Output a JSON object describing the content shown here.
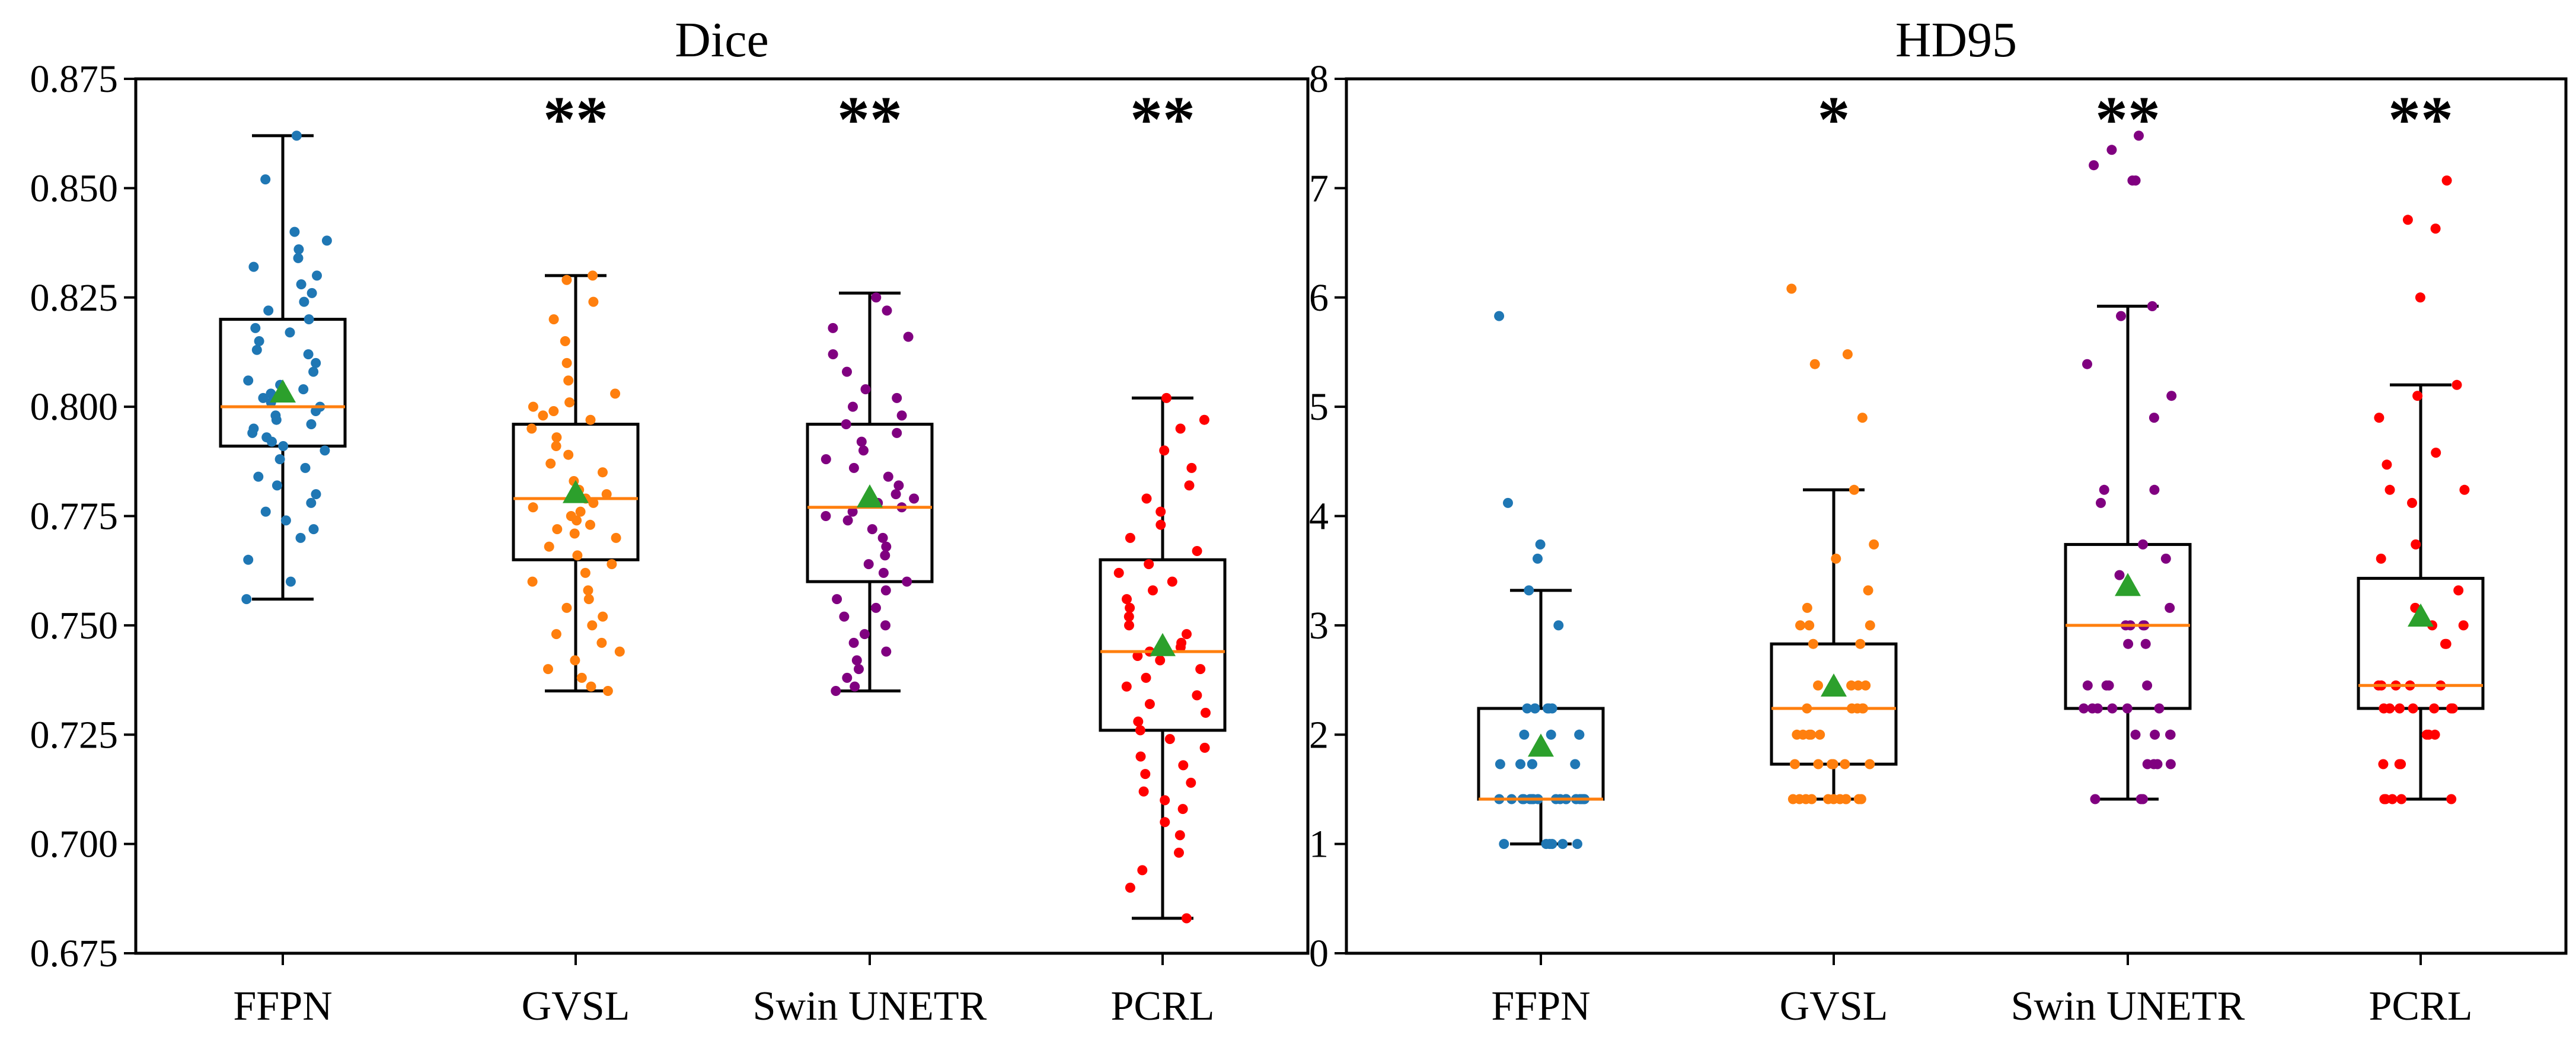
{
  "chart_data": [
    {
      "type": "box",
      "title": "Dice",
      "xlabel": "",
      "ylabel": "",
      "ylim": [
        0.675,
        0.875
      ],
      "yticks": [
        0.675,
        0.7,
        0.725,
        0.75,
        0.775,
        0.8,
        0.825,
        0.85,
        0.875
      ],
      "ytick_labels": [
        "0.675",
        "0.700",
        "0.725",
        "0.750",
        "0.775",
        "0.800",
        "0.825",
        "0.850",
        "0.875"
      ],
      "categories": [
        "FFPN",
        "GVSL",
        "Swin UNETR",
        "PCRL"
      ],
      "colors": [
        "#1f77b4",
        "#ff7f0e",
        "#800080",
        "#ff0000"
      ],
      "mean_color": "#2ca02c",
      "median_color": "#ff7f0e",
      "significance": [
        "",
        "**",
        "**",
        "**"
      ],
      "boxes": [
        {
          "whislo": 0.756,
          "q1": 0.791,
          "median": 0.8,
          "q3": 0.82,
          "whishi": 0.862,
          "mean": 0.803,
          "points": [
            0.862,
            0.852,
            0.84,
            0.838,
            0.836,
            0.834,
            0.832,
            0.83,
            0.828,
            0.826,
            0.824,
            0.822,
            0.82,
            0.818,
            0.817,
            0.815,
            0.813,
            0.812,
            0.81,
            0.808,
            0.806,
            0.805,
            0.804,
            0.803,
            0.802,
            0.801,
            0.8,
            0.799,
            0.798,
            0.797,
            0.796,
            0.795,
            0.794,
            0.793,
            0.792,
            0.791,
            0.79,
            0.788,
            0.786,
            0.784,
            0.782,
            0.78,
            0.778,
            0.776,
            0.774,
            0.772,
            0.77,
            0.765,
            0.76,
            0.756
          ]
        },
        {
          "whislo": 0.735,
          "q1": 0.765,
          "median": 0.779,
          "q3": 0.796,
          "whishi": 0.83,
          "mean": 0.78,
          "points": [
            0.83,
            0.829,
            0.824,
            0.82,
            0.815,
            0.81,
            0.806,
            0.803,
            0.801,
            0.8,
            0.799,
            0.798,
            0.797,
            0.795,
            0.793,
            0.791,
            0.789,
            0.787,
            0.785,
            0.783,
            0.781,
            0.78,
            0.779,
            0.778,
            0.777,
            0.776,
            0.775,
            0.774,
            0.773,
            0.772,
            0.771,
            0.77,
            0.768,
            0.766,
            0.764,
            0.762,
            0.76,
            0.758,
            0.756,
            0.754,
            0.752,
            0.75,
            0.748,
            0.746,
            0.744,
            0.742,
            0.74,
            0.738,
            0.736,
            0.735
          ]
        },
        {
          "whislo": 0.735,
          "q1": 0.76,
          "median": 0.777,
          "q3": 0.796,
          "whishi": 0.826,
          "mean": 0.779,
          "points": [
            0.825,
            0.822,
            0.818,
            0.816,
            0.812,
            0.808,
            0.804,
            0.802,
            0.8,
            0.798,
            0.796,
            0.794,
            0.792,
            0.79,
            0.788,
            0.786,
            0.784,
            0.782,
            0.78,
            0.779,
            0.778,
            0.777,
            0.776,
            0.775,
            0.774,
            0.772,
            0.77,
            0.768,
            0.766,
            0.764,
            0.762,
            0.76,
            0.758,
            0.756,
            0.754,
            0.752,
            0.75,
            0.748,
            0.746,
            0.744,
            0.742,
            0.74,
            0.738,
            0.736,
            0.735
          ]
        },
        {
          "whislo": 0.683,
          "q1": 0.726,
          "median": 0.744,
          "q3": 0.765,
          "whishi": 0.802,
          "mean": 0.745,
          "points": [
            0.802,
            0.797,
            0.795,
            0.79,
            0.786,
            0.782,
            0.779,
            0.776,
            0.773,
            0.77,
            0.767,
            0.764,
            0.762,
            0.76,
            0.758,
            0.756,
            0.754,
            0.752,
            0.75,
            0.748,
            0.746,
            0.745,
            0.744,
            0.743,
            0.742,
            0.74,
            0.738,
            0.736,
            0.734,
            0.732,
            0.73,
            0.728,
            0.726,
            0.724,
            0.722,
            0.72,
            0.718,
            0.716,
            0.714,
            0.712,
            0.71,
            0.708,
            0.705,
            0.702,
            0.698,
            0.694,
            0.69,
            0.683
          ]
        }
      ]
    },
    {
      "type": "box",
      "title": "HD95",
      "xlabel": "",
      "ylabel": "",
      "ylim": [
        0,
        8
      ],
      "yticks": [
        0,
        1,
        2,
        3,
        4,
        5,
        6,
        7,
        8
      ],
      "ytick_labels": [
        "0",
        "1",
        "2",
        "3",
        "4",
        "5",
        "6",
        "7",
        "8"
      ],
      "categories": [
        "FFPN",
        "GVSL",
        "Swin UNETR",
        "PCRL"
      ],
      "colors": [
        "#1f77b4",
        "#ff7f0e",
        "#800080",
        "#ff0000"
      ],
      "mean_color": "#2ca02c",
      "median_color": "#ff7f0e",
      "significance": [
        "",
        "*",
        "**",
        "**"
      ],
      "boxes": [
        {
          "whislo": 1.0,
          "q1": 1.41,
          "median": 1.41,
          "q3": 2.24,
          "whishi": 3.32,
          "mean": 1.88,
          "points": [
            5.83,
            4.12,
            3.74,
            3.61,
            3.32,
            3.0,
            2.24,
            2.24,
            2.24,
            2.24,
            2.24,
            2.24,
            2.0,
            2.0,
            2.0,
            2.0,
            1.73,
            1.73,
            1.73,
            1.73,
            1.73,
            1.41,
            1.41,
            1.41,
            1.41,
            1.41,
            1.41,
            1.41,
            1.41,
            1.41,
            1.41,
            1.41,
            1.41,
            1.41,
            1.41,
            1.41,
            1.41,
            1.41,
            1.41,
            1.0,
            1.0,
            1.0,
            1.0,
            1.0,
            1.0
          ]
        },
        {
          "whislo": 1.41,
          "q1": 1.73,
          "median": 2.24,
          "q3": 2.83,
          "whishi": 4.24,
          "mean": 2.43,
          "points": [
            6.08,
            5.48,
            5.39,
            4.9,
            4.24,
            3.74,
            3.61,
            3.32,
            3.16,
            3.0,
            3.0,
            3.0,
            2.83,
            2.83,
            2.45,
            2.45,
            2.45,
            2.45,
            2.24,
            2.24,
            2.24,
            2.24,
            2.24,
            2.0,
            2.0,
            2.0,
            2.0,
            2.0,
            1.73,
            1.73,
            1.73,
            1.73,
            1.73,
            1.73,
            1.41,
            1.41,
            1.41,
            1.41,
            1.41,
            1.41,
            1.41,
            1.41,
            1.41,
            1.41,
            1.41
          ]
        },
        {
          "whislo": 1.41,
          "q1": 2.24,
          "median": 3.0,
          "q3": 3.74,
          "whishi": 5.92,
          "mean": 3.35,
          "points": [
            7.48,
            7.35,
            7.21,
            7.07,
            7.07,
            5.92,
            5.83,
            5.39,
            5.1,
            4.9,
            4.24,
            4.24,
            4.12,
            3.74,
            3.61,
            3.46,
            3.32,
            3.16,
            3.0,
            3.0,
            3.0,
            3.0,
            2.83,
            2.83,
            2.45,
            2.45,
            2.45,
            2.45,
            2.24,
            2.24,
            2.24,
            2.24,
            2.24,
            2.24,
            2.0,
            2.0,
            2.0,
            2.0,
            1.73,
            1.73,
            1.73,
            1.73,
            1.41,
            1.41,
            1.41
          ]
        },
        {
          "whislo": 1.41,
          "q1": 2.24,
          "median": 2.45,
          "q3": 3.43,
          "whishi": 5.2,
          "mean": 3.07,
          "points": [
            7.07,
            6.71,
            6.63,
            6.0,
            5.2,
            5.1,
            4.9,
            4.58,
            4.47,
            4.24,
            4.24,
            4.12,
            3.74,
            3.61,
            3.32,
            3.16,
            3.0,
            3.0,
            2.83,
            2.83,
            2.45,
            2.45,
            2.45,
            2.45,
            2.45,
            2.24,
            2.24,
            2.24,
            2.24,
            2.24,
            2.24,
            2.24,
            2.0,
            2.0,
            2.0,
            1.73,
            1.73,
            1.73,
            1.41,
            1.41,
            1.41,
            1.41,
            1.41
          ]
        }
      ]
    }
  ]
}
